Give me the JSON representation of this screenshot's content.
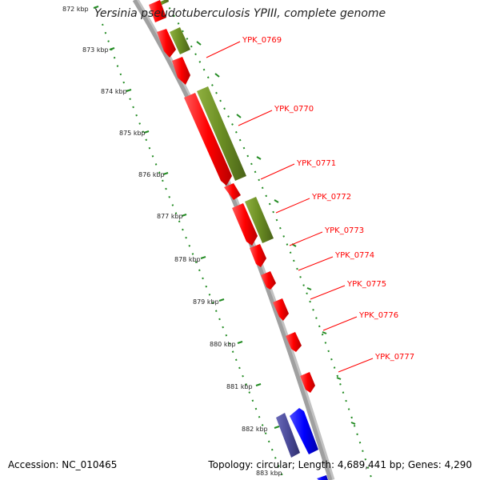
{
  "title": "Yersinia pseudotuberculosis YPIII, complete genome",
  "footer": {
    "accession": "Accession: NC_010465",
    "topology": "Topology: circular; Length: 4,689,441 bp; Genes: 4,290"
  },
  "colors": {
    "forward_gene": "#ff0000",
    "rna_gene": "#6b8e23",
    "reverse_gene": "#0000ff",
    "reverse_rna": "#4b4b9a",
    "backbone": "#a0a0a0",
    "ticks": "#228b22",
    "label": "#ff0000"
  },
  "scale_ticks": [
    "872 kbp",
    "873 kbp",
    "874 kbp",
    "875 kbp",
    "876 kbp",
    "877 kbp",
    "878 kbp",
    "879 kbp",
    "880 kbp",
    "881 kbp",
    "882 kbp",
    "883 kbp"
  ],
  "gene_labels": [
    "YPK_0769",
    "YPK_0770",
    "YPK_0771",
    "YPK_0772",
    "YPK_0773",
    "YPK_0774",
    "YPK_0775",
    "YPK_0776",
    "YPK_0777"
  ]
}
